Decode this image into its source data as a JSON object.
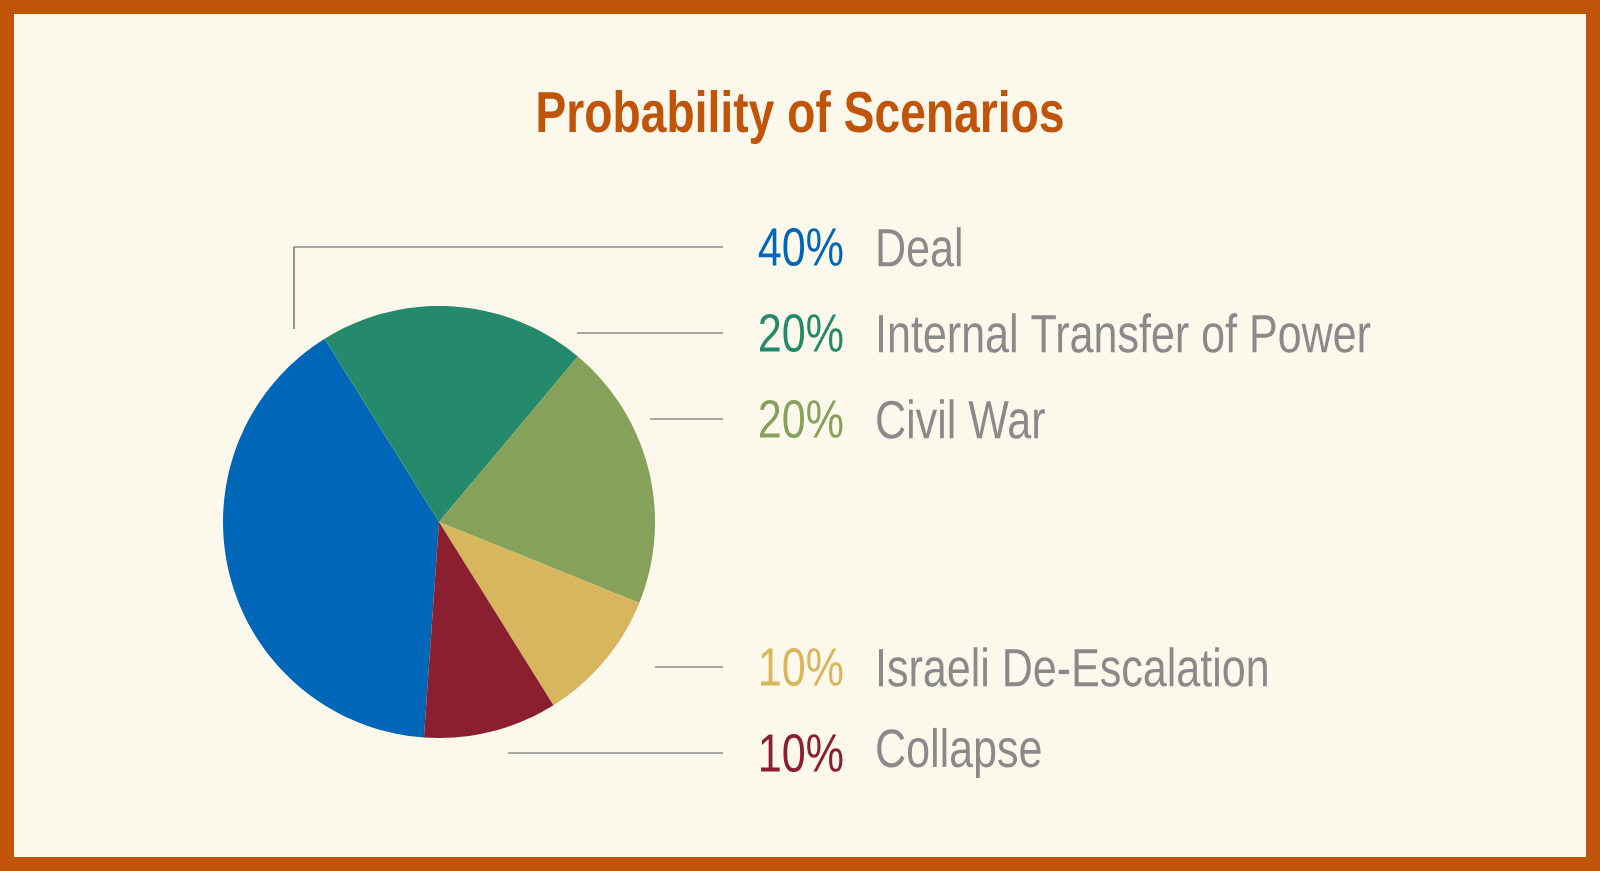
{
  "chart_data": {
    "type": "pie",
    "title": "Probability of Scenarios",
    "categories": [
      "Deal",
      "Internal Transfer of Power",
      "Civil War",
      "Israeli De-Escalation",
      "Collapse"
    ],
    "values": [
      40,
      20,
      20,
      10,
      10
    ],
    "colors": [
      "#0066b8",
      "#258a6b",
      "#86a15a",
      "#d8b65e",
      "#8a1f30"
    ],
    "value_labels": [
      "40%",
      "20%",
      "20%",
      "10%",
      "10%"
    ]
  }
}
